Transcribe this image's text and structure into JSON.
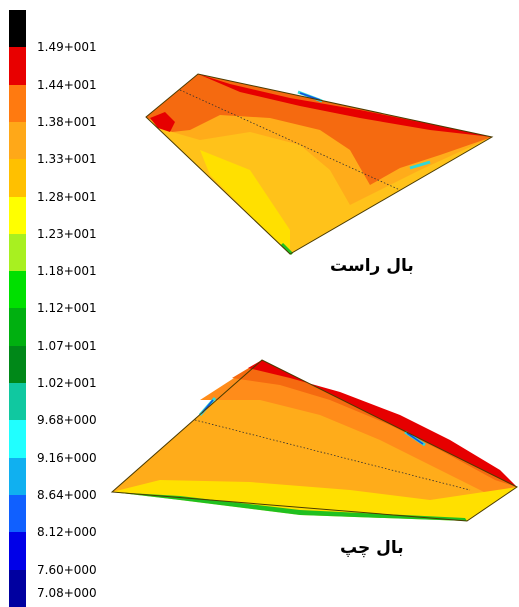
{
  "colorbar": {
    "labels": [
      "1.49+001",
      "1.44+001",
      "1.38+001",
      "1.33+001",
      "1.28+001",
      "1.23+001",
      "1.18+001",
      "1.12+001",
      "1.07+001",
      "1.02+001",
      "9.68+000",
      "9.16+000",
      "8.64+000",
      "8.12+000",
      "7.60+000",
      "7.08+000"
    ],
    "colors": [
      "#000000",
      "#e80000",
      "#ff7a10",
      "#ffa818",
      "#ffc000",
      "#ffff00",
      "#a8f020",
      "#00e000",
      "#00b010",
      "#008818",
      "#10c8a0",
      "#20ffff",
      "#10b0f0",
      "#1060ff",
      "#0000e8",
      "#0000a0"
    ]
  },
  "captions": {
    "right_wing": "بال راست",
    "left_wing": "بال چپ"
  },
  "zone_colors": {
    "red": "#e60000",
    "dark_orange": "#f56a10",
    "orange": "#ff8c1a",
    "amber": "#ffac1a",
    "yellow_orange": "#ffc21a",
    "yellow": "#ffe000",
    "green": "#20c020",
    "cyan": "#30d8d8",
    "blue": "#1050e0"
  }
}
